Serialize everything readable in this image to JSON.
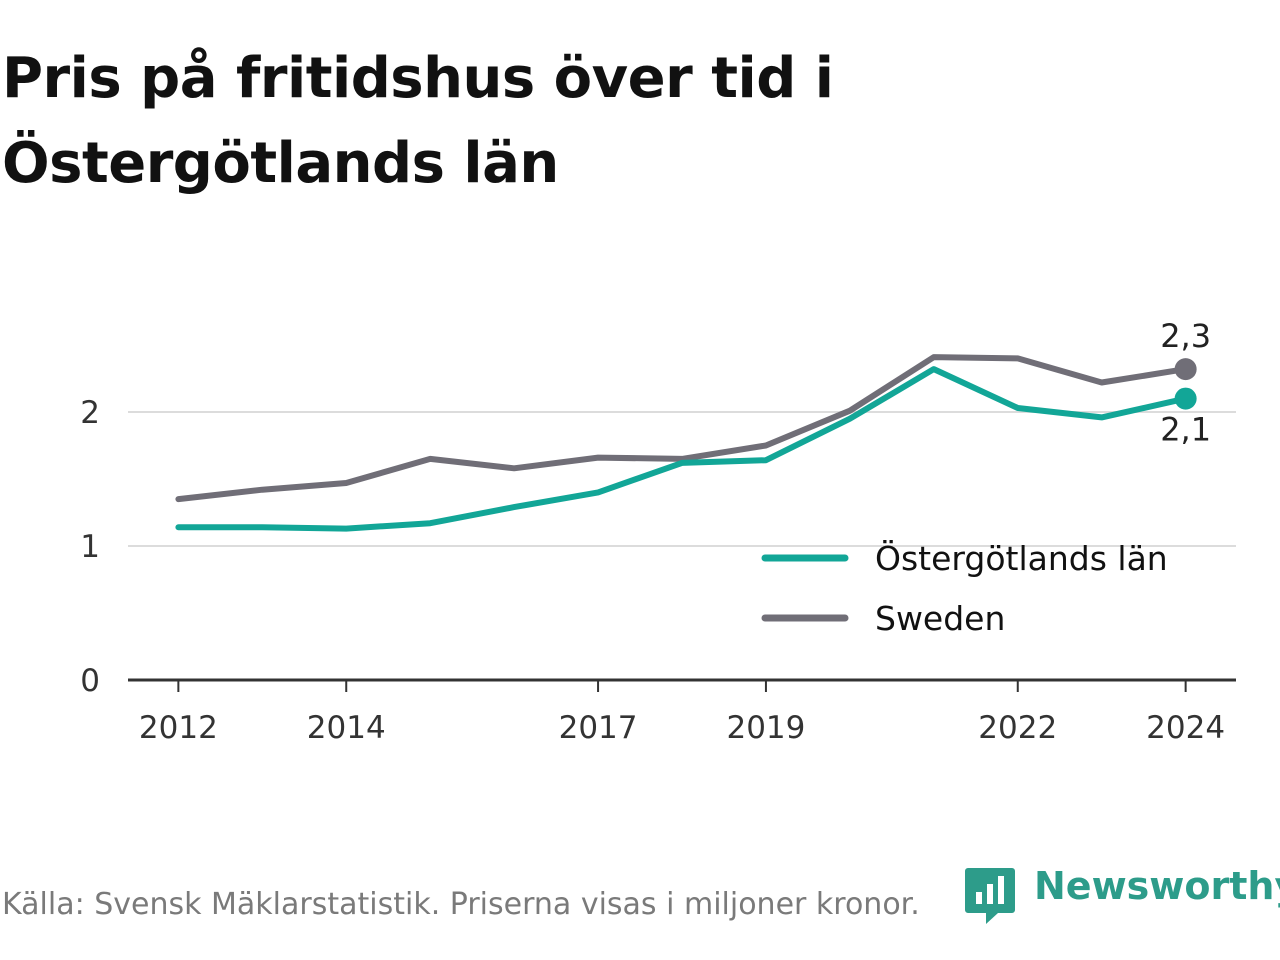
{
  "title": "Pris på fritidshus över tid i Östergötlands län",
  "source": "Källa: Svensk Mäklarstatistik. Priserna visas i miljoner kronor.",
  "brand": {
    "name": "Newsworthy",
    "icon": "newsworthy-logo-icon",
    "color": "#2d9c8a"
  },
  "chart_data": {
    "type": "line",
    "title": "Pris på fritidshus över tid i Östergötlands län",
    "xlabel": "",
    "ylabel": "",
    "x": [
      2012,
      2013,
      2014,
      2015,
      2016,
      2017,
      2018,
      2019,
      2020,
      2021,
      2022,
      2023,
      2024
    ],
    "x_ticks": [
      "2012",
      "2014",
      "2017",
      "2019",
      "2022",
      "2024"
    ],
    "x_tick_values": [
      2012,
      2014,
      2017,
      2019,
      2022,
      2024
    ],
    "y_ticks": [
      "0",
      "1",
      "2"
    ],
    "y_tick_values": [
      0,
      1,
      2
    ],
    "xlim": [
      2011.4,
      2024.6
    ],
    "ylim": [
      0,
      2.5
    ],
    "grid": true,
    "legend_position": "bottom-right",
    "series": [
      {
        "name": "Östergötlands län",
        "color": "#12a697",
        "values": [
          1.14,
          1.14,
          1.13,
          1.17,
          1.29,
          1.4,
          1.62,
          1.64,
          1.95,
          2.32,
          2.03,
          1.96,
          2.1
        ],
        "end_label": "2,1"
      },
      {
        "name": "Sweden",
        "color": "#706e77",
        "values": [
          1.35,
          1.42,
          1.47,
          1.65,
          1.58,
          1.66,
          1.65,
          1.75,
          2.01,
          2.41,
          2.4,
          2.22,
          2.32
        ],
        "end_label": "2,3"
      }
    ]
  }
}
